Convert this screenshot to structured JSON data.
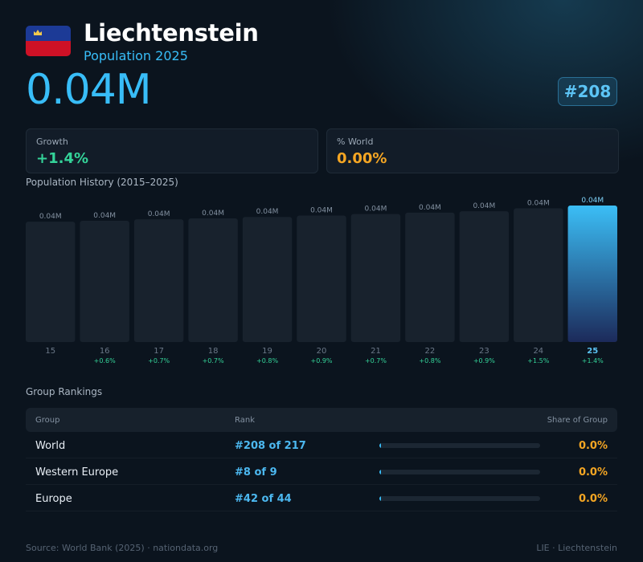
{
  "country": {
    "name": "Liechtenstein",
    "subtitle": "Population 2025",
    "flag_icon": "liechtenstein-flag-icon"
  },
  "population": "0.04M",
  "rank_badge": "#208",
  "stats": {
    "growth": {
      "label": "Growth",
      "value": "+1.4%",
      "color": "#34d399"
    },
    "world_share": {
      "label": "% World",
      "value": "0.00%",
      "color": "#f5a623"
    }
  },
  "history_title": "Population History (2015–2025)",
  "chart_data": {
    "type": "bar",
    "categories": [
      "15",
      "16",
      "17",
      "18",
      "19",
      "20",
      "21",
      "22",
      "23",
      "24",
      "25"
    ],
    "values": [
      0.0375,
      0.0377,
      0.038,
      0.0382,
      0.0385,
      0.0388,
      0.0391,
      0.0394,
      0.0397,
      0.0403,
      0.0409
    ],
    "value_labels": [
      "0.04M",
      "0.04M",
      "0.04M",
      "0.04M",
      "0.04M",
      "0.04M",
      "0.04M",
      "0.04M",
      "0.04M",
      "0.04M",
      "0.04M"
    ],
    "growth_labels": [
      "",
      "+0.6%",
      "+0.7%",
      "+0.7%",
      "+0.8%",
      "+0.9%",
      "+0.7%",
      "+0.8%",
      "+0.9%",
      "+1.5%",
      "+1.4%"
    ],
    "highlight_index": 10,
    "grid": false
  },
  "rankings": {
    "title": "Group Rankings",
    "headers": {
      "group": "Group",
      "rank": "Rank",
      "share": "Share of Group"
    },
    "rows": [
      {
        "group": "World",
        "rank": "#208 of 217",
        "share": "0.0%",
        "share_fraction": 5e-05
      },
      {
        "group": "Western Europe",
        "rank": "#8 of 9",
        "share": "0.0%",
        "share_fraction": 0.0002
      },
      {
        "group": "Europe",
        "rank": "#42 of 44",
        "share": "0.0%",
        "share_fraction": 5e-05
      }
    ]
  },
  "footer": {
    "source": "Source: World Bank (2025) · nationdata.org",
    "code": "LIE · Liechtenstein"
  },
  "colors": {
    "accent": "#38bdf8",
    "growth": "#34d399",
    "share": "#f5a623",
    "background": "#0b141e"
  }
}
